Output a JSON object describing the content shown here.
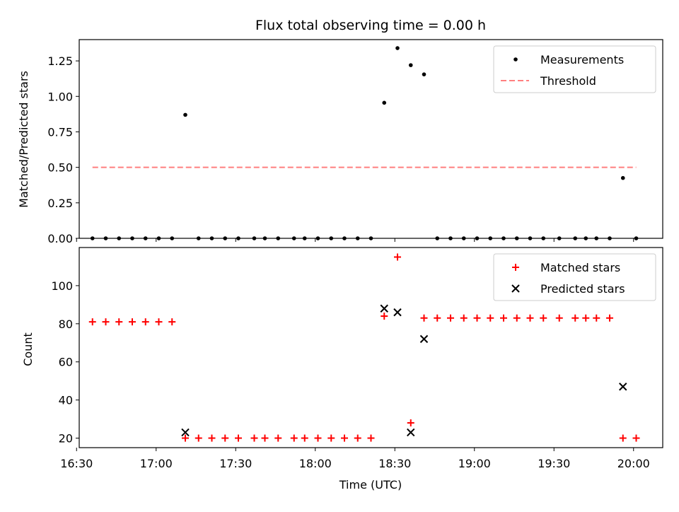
{
  "chart_data": [
    {
      "type": "scatter",
      "title": "Flux total observing time = 0.00 h",
      "xlabel": "",
      "ylabel": "Matched/Predicted stars",
      "xlim_minutes_of_day": [
        991,
        1211
      ],
      "xlim": [
        "16:31",
        "20:11"
      ],
      "ylim": [
        0,
        1.4
      ],
      "yticks": [
        0,
        0.25,
        0.5,
        0.75,
        1.0,
        1.25
      ],
      "ytick_labels": [
        "0.00",
        "0.25",
        "0.50",
        "0.75",
        "1.00",
        "1.25"
      ],
      "legend_position": "top-right",
      "series": [
        {
          "name": "Measurements",
          "style": "dots",
          "color": "#000000",
          "points": [
            [
              "16:36",
              0
            ],
            [
              "16:41",
              0
            ],
            [
              "16:46",
              0
            ],
            [
              "16:51",
              0
            ],
            [
              "16:56",
              0
            ],
            [
              "17:01",
              0
            ],
            [
              "17:06",
              0
            ],
            [
              "17:11",
              0.87
            ],
            [
              "17:16",
              0
            ],
            [
              "17:21",
              0
            ],
            [
              "17:26",
              0
            ],
            [
              "17:31",
              0
            ],
            [
              "17:37",
              0
            ],
            [
              "17:41",
              0
            ],
            [
              "17:46",
              0
            ],
            [
              "17:52",
              0
            ],
            [
              "17:56",
              0
            ],
            [
              "18:01",
              0
            ],
            [
              "18:06",
              0
            ],
            [
              "18:11",
              0
            ],
            [
              "18:16",
              0
            ],
            [
              "18:21",
              0
            ],
            [
              "18:26",
              0.955
            ],
            [
              "18:31",
              1.34
            ],
            [
              "18:36",
              1.22
            ],
            [
              "18:41",
              1.155
            ],
            [
              "18:46",
              0
            ],
            [
              "18:51",
              0
            ],
            [
              "18:56",
              0
            ],
            [
              "19:01",
              0
            ],
            [
              "19:06",
              0
            ],
            [
              "19:11",
              0
            ],
            [
              "19:16",
              0
            ],
            [
              "19:21",
              0
            ],
            [
              "19:26",
              0
            ],
            [
              "19:32",
              0
            ],
            [
              "19:38",
              0
            ],
            [
              "19:42",
              0
            ],
            [
              "19:46",
              0
            ],
            [
              "19:51",
              0
            ],
            [
              "19:56",
              0.425
            ],
            [
              "20:01",
              0
            ]
          ]
        },
        {
          "name": "Threshold",
          "style": "dashed-line",
          "color": "#ff7f7f",
          "points": [
            [
              "16:36",
              0.5
            ],
            [
              "20:01",
              0.5
            ]
          ]
        }
      ]
    },
    {
      "type": "scatter",
      "title": "",
      "xlabel": "Time (UTC)",
      "ylabel": "Count",
      "xlim_minutes_of_day": [
        991,
        1211
      ],
      "xlim": [
        "16:31",
        "20:11"
      ],
      "ylim": [
        15,
        120
      ],
      "yticks": [
        20,
        40,
        60,
        80,
        100
      ],
      "ytick_labels": [
        "20",
        "40",
        "60",
        "80",
        "100"
      ],
      "xticks": [
        "16:30",
        "17:00",
        "17:30",
        "18:00",
        "18:30",
        "19:00",
        "19:30",
        "20:00"
      ],
      "legend_position": "top-right",
      "series": [
        {
          "name": "Matched stars",
          "style": "plus",
          "color": "#ff0000",
          "points": [
            [
              "16:36",
              81
            ],
            [
              "16:41",
              81
            ],
            [
              "16:46",
              81
            ],
            [
              "16:51",
              81
            ],
            [
              "16:56",
              81
            ],
            [
              "17:01",
              81
            ],
            [
              "17:06",
              81
            ],
            [
              "17:11",
              20
            ],
            [
              "17:16",
              20
            ],
            [
              "17:21",
              20
            ],
            [
              "17:26",
              20
            ],
            [
              "17:31",
              20
            ],
            [
              "17:37",
              20
            ],
            [
              "17:41",
              20
            ],
            [
              "17:46",
              20
            ],
            [
              "17:52",
              20
            ],
            [
              "17:56",
              20
            ],
            [
              "18:01",
              20
            ],
            [
              "18:06",
              20
            ],
            [
              "18:11",
              20
            ],
            [
              "18:16",
              20
            ],
            [
              "18:21",
              20
            ],
            [
              "18:26",
              84
            ],
            [
              "18:31",
              115
            ],
            [
              "18:36",
              28
            ],
            [
              "18:41",
              83
            ],
            [
              "18:46",
              83
            ],
            [
              "18:51",
              83
            ],
            [
              "18:56",
              83
            ],
            [
              "19:01",
              83
            ],
            [
              "19:06",
              83
            ],
            [
              "19:11",
              83
            ],
            [
              "19:16",
              83
            ],
            [
              "19:21",
              83
            ],
            [
              "19:26",
              83
            ],
            [
              "19:32",
              83
            ],
            [
              "19:38",
              83
            ],
            [
              "19:42",
              83
            ],
            [
              "19:46",
              83
            ],
            [
              "19:51",
              83
            ],
            [
              "19:56",
              20
            ],
            [
              "20:01",
              20
            ]
          ]
        },
        {
          "name": "Predicted stars",
          "style": "x",
          "color": "#000000",
          "points": [
            [
              "17:11",
              23
            ],
            [
              "18:26",
              88
            ],
            [
              "18:31",
              86
            ],
            [
              "18:36",
              23
            ],
            [
              "18:41",
              72
            ],
            [
              "19:56",
              47
            ]
          ]
        }
      ]
    }
  ]
}
